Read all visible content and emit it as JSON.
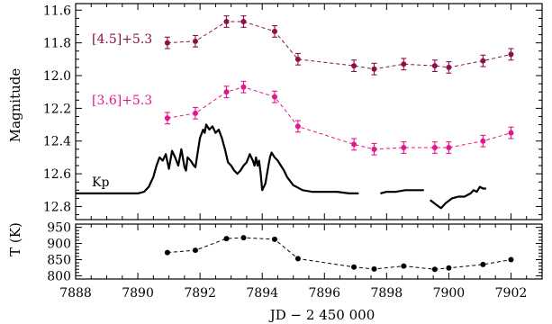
{
  "chart_data": [
    {
      "type": "line",
      "panel": "top",
      "xlabel": "",
      "ylabel": "Magnitude",
      "xlim": [
        7888,
        7903
      ],
      "ylim": [
        12.88,
        11.56
      ],
      "y_inverted": true,
      "xticks": [
        7888,
        7890,
        7892,
        7894,
        7896,
        7898,
        7900,
        7902
      ],
      "yticks": [
        11.6,
        11.8,
        12.0,
        12.2,
        12.4,
        12.6,
        12.8
      ],
      "ytick_labels": [
        "11.6",
        "11.8",
        "12.0",
        "12.2",
        "12.4",
        "12.6",
        "12.8"
      ],
      "grid": false,
      "series": [
        {
          "name": "[4.5]+5.3",
          "color": "#8b1048",
          "style": "dashed-markers-errorbars",
          "x": [
            7890.95,
            7891.85,
            7892.85,
            7893.4,
            7894.4,
            7895.15,
            7896.95,
            7897.6,
            7898.55,
            7899.55,
            7900.0,
            7901.1,
            7902.0
          ],
          "y": [
            11.8,
            11.79,
            11.67,
            11.67,
            11.73,
            11.9,
            11.94,
            11.96,
            11.93,
            11.94,
            11.95,
            11.91,
            11.87
          ],
          "err": [
            0.035,
            0.035,
            0.035,
            0.035,
            0.035,
            0.035,
            0.035,
            0.035,
            0.035,
            0.035,
            0.035,
            0.035,
            0.035
          ]
        },
        {
          "name": "[3.6]+5.3",
          "color": "#e3168c",
          "style": "dashed-markers-errorbars",
          "x": [
            7890.95,
            7891.85,
            7892.85,
            7893.4,
            7894.4,
            7895.15,
            7896.95,
            7897.6,
            7898.55,
            7899.55,
            7900.0,
            7901.1,
            7902.0
          ],
          "y": [
            12.26,
            12.23,
            12.1,
            12.07,
            12.13,
            12.31,
            12.42,
            12.45,
            12.44,
            12.44,
            12.44,
            12.4,
            12.35
          ],
          "err": [
            0.035,
            0.035,
            0.035,
            0.035,
            0.035,
            0.035,
            0.035,
            0.035,
            0.035,
            0.035,
            0.035,
            0.035,
            0.035
          ]
        },
        {
          "name": "Kp",
          "color": "#000000",
          "style": "solid",
          "segments": [
            {
              "x": [
                7888.0,
                7888.5,
                7889.0,
                7889.5,
                7889.8,
                7890.0,
                7890.2,
                7890.35,
                7890.5,
                7890.6,
                7890.7,
                7890.8,
                7890.9,
                7891.0,
                7891.1,
                7891.2,
                7891.3,
                7891.4,
                7891.5,
                7891.55,
                7891.6,
                7891.7,
                7891.8,
                7891.85,
                7891.9,
                7892.0,
                7892.1,
                7892.15,
                7892.2,
                7892.3,
                7892.4,
                7892.5,
                7892.6,
                7892.7,
                7892.8,
                7892.9,
                7893.0,
                7893.1,
                7893.2,
                7893.3,
                7893.4,
                7893.5,
                7893.6,
                7893.7,
                7893.75,
                7893.8,
                7893.85,
                7893.9,
                7893.95,
                7894.0,
                7894.1,
                7894.2,
                7894.25,
                7894.3,
                7894.4,
                7894.5,
                7894.6,
                7894.7,
                7894.8,
                7895.0,
                7895.3,
                7895.6,
                7896.0,
                7896.4,
                7896.8,
                7897.1
              ],
              "y": [
                12.72,
                12.72,
                12.72,
                12.72,
                12.72,
                12.72,
                12.71,
                12.68,
                12.62,
                12.55,
                12.5,
                12.52,
                12.48,
                12.57,
                12.46,
                12.5,
                12.55,
                12.45,
                12.56,
                12.58,
                12.5,
                12.52,
                12.55,
                12.56,
                12.5,
                12.38,
                12.33,
                12.35,
                12.3,
                12.33,
                12.31,
                12.35,
                12.33,
                12.38,
                12.45,
                12.53,
                12.55,
                12.58,
                12.6,
                12.58,
                12.55,
                12.53,
                12.48,
                12.52,
                12.55,
                12.5,
                12.55,
                12.52,
                12.6,
                12.7,
                12.66,
                12.55,
                12.5,
                12.47,
                12.5,
                12.52,
                12.55,
                12.58,
                12.62,
                12.67,
                12.7,
                12.71,
                12.71,
                12.71,
                12.72,
                12.72
              ]
            },
            {
              "x": [
                7897.8,
                7898.0,
                7898.3,
                7898.6,
                7898.9,
                7899.2
              ],
              "y": [
                12.72,
                12.71,
                12.71,
                12.7,
                12.7,
                12.7
              ]
            },
            {
              "x": [
                7899.4,
                7899.6,
                7899.75,
                7899.9,
                7900.1,
                7900.3,
                7900.5,
                7900.7,
                7900.8,
                7900.9,
                7901.0,
                7901.1,
                7901.2
              ],
              "y": [
                12.76,
                12.79,
                12.81,
                12.78,
                12.75,
                12.74,
                12.74,
                12.72,
                12.7,
                12.71,
                12.68,
                12.69,
                12.69
              ]
            }
          ]
        }
      ]
    },
    {
      "type": "line",
      "panel": "bottom",
      "xlabel": "JD − 2 450 000",
      "ylabel": "T (K)",
      "xlim": [
        7888,
        7903
      ],
      "ylim": [
        790,
        960
      ],
      "xticks": [
        7888,
        7890,
        7892,
        7894,
        7896,
        7898,
        7900,
        7902
      ],
      "xtick_labels": [
        "7888",
        "7890",
        "7892",
        "7894",
        "7896",
        "7898",
        "7900",
        "7902"
      ],
      "yticks": [
        800,
        850,
        900,
        950
      ],
      "ytick_labels": [
        "800",
        "850",
        "900",
        "950"
      ],
      "grid": false,
      "series": [
        {
          "color": "#000000",
          "style": "dashed-markers",
          "x": [
            7890.95,
            7891.85,
            7892.85,
            7893.4,
            7894.4,
            7895.15,
            7896.95,
            7897.6,
            7898.55,
            7899.55,
            7900.0,
            7901.1,
            7902.0
          ],
          "y": [
            872,
            879,
            915,
            918,
            913,
            853,
            827,
            821,
            830,
            820,
            824,
            835,
            850
          ]
        }
      ]
    }
  ]
}
